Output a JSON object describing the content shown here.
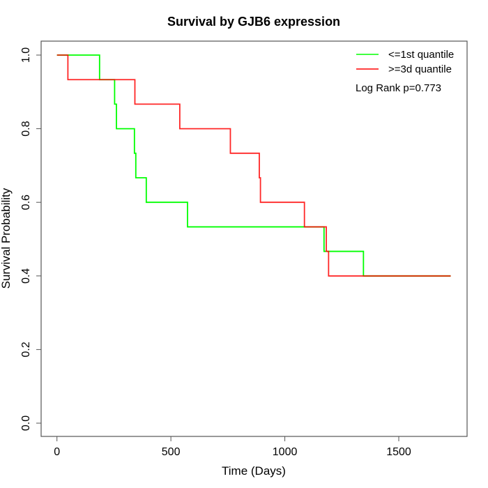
{
  "chart_data": {
    "type": "line",
    "subtype": "kaplan-meier-step",
    "title": "Survival by GJB6 expression",
    "xlabel": "Time (Days)",
    "ylabel": "Survival Probability",
    "xlim": [
      0,
      1728
    ],
    "ylim": [
      0,
      1
    ],
    "x_ticks": [
      0,
      500,
      1000,
      1500
    ],
    "x_tick_labels": [
      "0",
      "500",
      "1000",
      "1500"
    ],
    "y_ticks": [
      0,
      0.2,
      0.4,
      0.6,
      0.8,
      1.0
    ],
    "y_tick_labels": [
      "0.0",
      "0.2",
      "0.4",
      "0.6",
      "0.8",
      "1.0"
    ],
    "grid": false,
    "legend_position": "top-right",
    "annotation": "Log Rank p=0.773",
    "series": [
      {
        "name": "<=1st quantile",
        "color": "#00ff00",
        "x": [
          0,
          187,
          253,
          261,
          340,
          346,
          392,
          573,
          1172,
          1345,
          1728
        ],
        "y": [
          1.0,
          0.9333,
          0.8667,
          0.8,
          0.7333,
          0.6667,
          0.6,
          0.5333,
          0.4667,
          0.4,
          0.4
        ]
      },
      {
        "name": ">=3d quantile",
        "color": "#ff0000",
        "x": [
          0,
          48,
          342,
          539,
          761,
          888,
          893,
          1086,
          1182,
          1192,
          1728
        ],
        "y": [
          1.0,
          0.9333,
          0.8667,
          0.8,
          0.7333,
          0.6667,
          0.6,
          0.5333,
          0.4667,
          0.4,
          0.4
        ]
      }
    ]
  }
}
